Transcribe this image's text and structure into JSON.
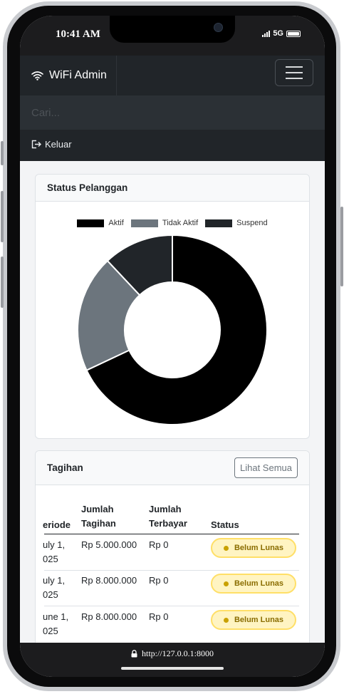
{
  "status_bar": {
    "time": "10:41 AM",
    "network": "5G"
  },
  "navbar": {
    "brand": "WiFi Admin"
  },
  "search": {
    "placeholder": "Cari..."
  },
  "logout_label": "Keluar",
  "status_card": {
    "title": "Status Pelanggan",
    "chart_data": {
      "type": "pie",
      "variant": "doughnut",
      "labels": [
        "Aktif",
        "Tidak Aktif",
        "Suspend"
      ],
      "values": [
        68,
        20,
        12
      ],
      "colors": [
        "#000000",
        "#6c757d",
        "#212529"
      ],
      "legend_position": "top"
    }
  },
  "billing_card": {
    "title": "Tagihan",
    "view_all": "Lihat Semua",
    "columns": [
      "eriode",
      "Jumlah Tagihan",
      "Jumlah Terbayar",
      "Status"
    ],
    "rows": [
      {
        "periode_line1": "uly 1,",
        "periode_line2": "025",
        "tagihan": "Rp 5.000.000",
        "terbayar": "Rp 0",
        "status": "Belum Lunas"
      },
      {
        "periode_line1": "uly 1,",
        "periode_line2": "025",
        "tagihan": "Rp 8.000.000",
        "terbayar": "Rp 0",
        "status": "Belum Lunas"
      },
      {
        "periode_line1": "une 1,",
        "periode_line2": "025",
        "tagihan": "Rp 8.000.000",
        "terbayar": "Rp 0",
        "status": "Belum Lunas"
      }
    ]
  },
  "url_bar": {
    "url": "http://127.0.0.1:8000"
  }
}
